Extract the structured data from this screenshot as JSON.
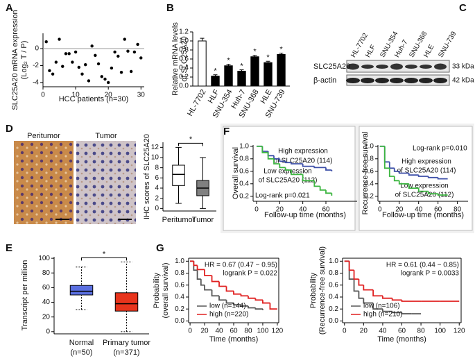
{
  "chart_data": [
    {
      "panel": "A",
      "type": "scatter",
      "ylabel": [
        "SLC25A20 mRNA expression",
        "(Log₂ T / P)"
      ],
      "xlabel": "HCC patients (n=30)",
      "x": [
        1,
        2,
        3,
        4,
        5,
        6,
        7,
        8,
        9,
        10,
        11,
        12,
        13,
        14,
        15,
        16,
        17,
        18,
        19,
        20,
        21,
        22,
        23,
        24,
        25,
        26,
        27,
        28,
        29,
        30
      ],
      "values": [
        0.8,
        -2.6,
        -3.0,
        -1.6,
        1.1,
        -2.1,
        -0.6,
        -0.6,
        -1.6,
        -0.4,
        -2.2,
        -3.0,
        -1.9,
        -3.8,
        0.3,
        -0.8,
        -1.8,
        -3.3,
        -3.6,
        -4.0,
        -2.3,
        -0.4,
        -0.9,
        -2.8,
        1.1,
        -0.3,
        -2.7,
        -0.4,
        0.5,
        -1.1
      ],
      "color": "#000000",
      "xlim": [
        0,
        31
      ],
      "ylim": [
        -4.5,
        1.8
      ],
      "xticks": [
        0,
        10,
        20,
        30
      ],
      "yticks": [
        0,
        -2,
        -4
      ],
      "zero_line": true
    },
    {
      "panel": "B",
      "type": "bar",
      "ylabel": [
        "Relative mRNA levels",
        "of SLC25A20"
      ],
      "categories": [
        "HL-7702",
        "HLF",
        "SNU-354",
        "Huh-7",
        "SNU-368",
        "HLE",
        "SNU-739"
      ],
      "values": [
        1.0,
        0.22,
        0.45,
        0.33,
        0.65,
        0.52,
        0.7
      ],
      "errors": [
        0.06,
        0.03,
        0.03,
        0.03,
        0.03,
        0.03,
        0.03
      ],
      "colors": [
        "#ffffff",
        "#000000",
        "#000000",
        "#000000",
        "#000000",
        "#000000",
        "#000000"
      ],
      "significance": [
        null,
        "*",
        "*",
        "*",
        "*",
        "*",
        "*"
      ],
      "ylim": [
        0,
        1.2
      ],
      "yticks": [
        {
          "value": 0,
          "label": "0.0"
        },
        0.2,
        0.4,
        0.6,
        0.8,
        {
          "value": 1,
          "label": "1.0"
        },
        1.2
      ]
    },
    {
      "panel": "D",
      "type": "box",
      "ylabel": "IHC scores of SLC25A20",
      "categories": [
        "Peritumor",
        "Tumor"
      ],
      "boxes": [
        {
          "min": 1,
          "q1": 4.5,
          "median": 6.7,
          "q3": 8.5,
          "max": 12
        },
        {
          "min": 0,
          "q1": 2.5,
          "median": 4,
          "q3": 5.5,
          "max": 10
        }
      ],
      "colors": [
        "#ffffff",
        "#808080"
      ],
      "significance": "*",
      "ylim": [
        -0.5,
        13
      ],
      "yticks": [
        0,
        2,
        4,
        6,
        8,
        10,
        12
      ]
    },
    {
      "panel": "F",
      "type": "km",
      "ylabel": "Overall survival",
      "xlabel": "Follow-up time (months)",
      "series": [
        {
          "color": "#3d4fa8",
          "x": [
            0,
            5,
            10,
            15,
            20,
            25,
            30,
            40,
            50,
            60,
            65
          ],
          "values": [
            1.0,
            0.92,
            0.85,
            0.8,
            0.76,
            0.74,
            0.72,
            0.68,
            0.66,
            0.62,
            0.6
          ]
        },
        {
          "color": "#3cb540",
          "x": [
            0,
            5,
            10,
            15,
            20,
            25,
            30,
            40,
            50,
            55,
            60,
            65
          ],
          "values": [
            1.0,
            0.9,
            0.8,
            0.72,
            0.66,
            0.62,
            0.55,
            0.45,
            0.36,
            0.3,
            0.25,
            0.21
          ]
        }
      ],
      "annotations": [
        "High expression",
        "of SLC25A20 (114)",
        "Low expression",
        "of SLC25A20 (112)",
        "Log-rank p=0.021"
      ],
      "xlim": [
        -3,
        87
      ],
      "ylim": [
        0.12,
        1.02
      ],
      "xticks": [
        0,
        20,
        40,
        60
      ],
      "yticks": [
        0.2,
        0.4,
        0.6,
        0.8,
        {
          "value": 1,
          "label": "1.0"
        }
      ]
    },
    {
      "type": "km",
      "ylabel": "Recurrence-free survival",
      "xlabel": "Follow-up time (months)",
      "series": [
        {
          "color": "#3d4fa8",
          "x": [
            0,
            5,
            10,
            15,
            20,
            30,
            40,
            50,
            60,
            70
          ],
          "values": [
            1.0,
            0.75,
            0.65,
            0.6,
            0.57,
            0.54,
            0.52,
            0.5,
            0.48,
            0.48
          ]
        },
        {
          "color": "#3cb540",
          "x": [
            0,
            5,
            10,
            15,
            20,
            30,
            40,
            50,
            60,
            70
          ],
          "values": [
            1.0,
            0.65,
            0.52,
            0.45,
            0.4,
            0.33,
            0.28,
            0.24,
            0.22,
            0.22
          ]
        }
      ],
      "annotations": [
        "Log-rank p=0.010",
        "High expression",
        "of SLC25A20 (114)",
        "Low expression",
        "of SLC25A20 (112)"
      ],
      "xlim": [
        -2,
        91
      ],
      "ylim": [
        0.12,
        1.02
      ],
      "xticks": [
        0,
        20,
        40,
        60,
        80
      ],
      "yticks": [
        0.2,
        0.4,
        0.6,
        0.8,
        {
          "value": 1,
          "label": "1.0"
        }
      ]
    },
    {
      "panel": "E",
      "type": "box",
      "ylabel": "Transcript per million",
      "categories": [
        "Normal",
        "Primary tumor"
      ],
      "n_labels": [
        "(n=50)",
        "(n=371)"
      ],
      "boxes": [
        {
          "min": 30,
          "q1": 50,
          "median": 55,
          "q3": 63,
          "max": 88
        },
        {
          "min": 0,
          "q1": 28,
          "median": 38,
          "q3": 53,
          "max": 95
        }
      ],
      "colors": [
        "#5a6fe0",
        "#e8341c"
      ],
      "significance": "*",
      "ylim": [
        -3,
        102
      ],
      "yticks": [
        0,
        20,
        40,
        60,
        80,
        100
      ]
    },
    {
      "panel": "G",
      "type": "km",
      "ylabel": [
        "Probability",
        "(overall survival)"
      ],
      "xlabel": "Time (months)",
      "series": [
        {
          "name": "low (n=144)",
          "color": "#555555",
          "x": [
            0,
            5,
            10,
            15,
            20,
            30,
            40,
            50,
            60,
            70,
            80,
            90,
            100
          ],
          "values": [
            1,
            0.85,
            0.7,
            0.6,
            0.52,
            0.42,
            0.35,
            0.3,
            0.27,
            0.25,
            0.22,
            0.2,
            0.18
          ]
        },
        {
          "name": "high (n=220)",
          "color": "#e02020",
          "x": [
            0,
            5,
            10,
            20,
            30,
            40,
            50,
            60,
            70,
            80,
            90,
            100,
            110,
            120
          ],
          "values": [
            1,
            0.93,
            0.86,
            0.76,
            0.66,
            0.58,
            0.5,
            0.45,
            0.42,
            0.38,
            0.35,
            0.3,
            0.2,
            0.2
          ]
        }
      ],
      "annotations": [
        "HR = 0.67 (0.47 − 0.95)",
        "logrank P = 0.022"
      ],
      "legend": "lower left",
      "xlim": [
        -2,
        122
      ],
      "ylim": [
        -0.03,
        1.05
      ],
      "xticks": [
        0,
        20,
        40,
        60,
        80,
        100,
        120
      ],
      "yticks": [
        {
          "value": 0,
          "label": "0.0"
        },
        0.2,
        0.4,
        0.6,
        0.8,
        {
          "value": 1,
          "label": "1.0"
        }
      ]
    },
    {
      "type": "km",
      "ylabel": [
        "Probability",
        "(Recurrence-free survival)"
      ],
      "xlabel": "Time (months)",
      "series": [
        {
          "name": "low (n=106)",
          "color": "#555555",
          "x": [
            0,
            5,
            10,
            15,
            20,
            30,
            40,
            50,
            60,
            70,
            80
          ],
          "values": [
            1,
            0.7,
            0.5,
            0.38,
            0.3,
            0.2,
            0.16,
            0.14,
            0.12,
            0.12,
            0.12
          ]
        },
        {
          "name": "high (n=210)",
          "color": "#e02020",
          "x": [
            0,
            5,
            10,
            15,
            20,
            30,
            40,
            50,
            60,
            80,
            100,
            120
          ],
          "values": [
            1,
            0.85,
            0.7,
            0.6,
            0.52,
            0.42,
            0.38,
            0.35,
            0.33,
            0.33,
            0.33,
            0.33
          ]
        }
      ],
      "annotations": [
        "HR = 0.61 (0.44 − 0.85)",
        "logrank P = 0.0033"
      ],
      "legend": "lower left",
      "xlim": [
        -2,
        122
      ],
      "ylim": [
        -0.03,
        1.05
      ],
      "xticks": [
        0,
        20,
        40,
        60,
        80,
        100,
        120
      ],
      "yticks": [
        {
          "value": 0,
          "label": "0.0"
        },
        0.2,
        0.4,
        0.6,
        0.8,
        {
          "value": 1,
          "label": "1.0"
        }
      ]
    }
  ],
  "western_blot": {
    "panel": "C",
    "lanes": [
      "HL-7702",
      "HLF",
      "SNU-354",
      "Huh-7",
      "SNU-368",
      "HLE",
      "SNU-739"
    ],
    "proteins": [
      "SLC25A20",
      "β-actin"
    ],
    "sizes": [
      "33 kDa",
      "42 kDa"
    ]
  },
  "ihc": {
    "labels": [
      "Peritumor",
      "Tumor"
    ]
  }
}
